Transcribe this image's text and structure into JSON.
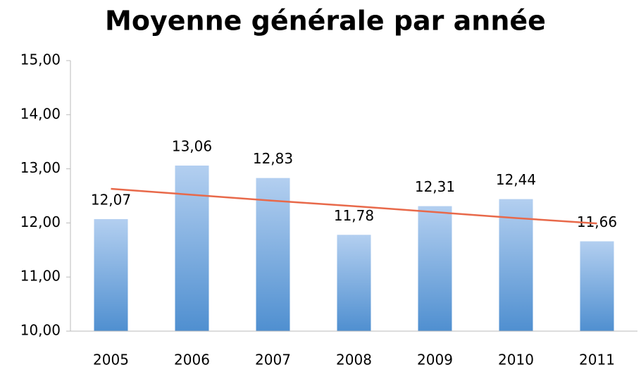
{
  "chart_data": {
    "type": "bar",
    "title": "Moyenne générale par année",
    "categories": [
      "2005",
      "2006",
      "2007",
      "2008",
      "2009",
      "2010",
      "2011"
    ],
    "values": [
      12.07,
      13.06,
      12.83,
      11.78,
      12.31,
      12.44,
      11.66
    ],
    "value_labels": [
      "12,07",
      "13,06",
      "12,83",
      "11,78",
      "12,31",
      "12,44",
      "11,66"
    ],
    "color": "#5b9bd5",
    "trendline": {
      "color": "#e8694a",
      "values": [
        12.63,
        12.52,
        12.41,
        12.31,
        12.2,
        12.09,
        11.99
      ]
    },
    "ylim": [
      10,
      15
    ],
    "yticks": [
      {
        "value": 10,
        "label": "10,00"
      },
      {
        "value": 11,
        "label": "11,00"
      },
      {
        "value": 12,
        "label": "12,00"
      },
      {
        "value": 13,
        "label": "13,00"
      },
      {
        "value": 14,
        "label": "14,00"
      },
      {
        "value": 15,
        "label": "15,00"
      }
    ],
    "grid": false
  }
}
